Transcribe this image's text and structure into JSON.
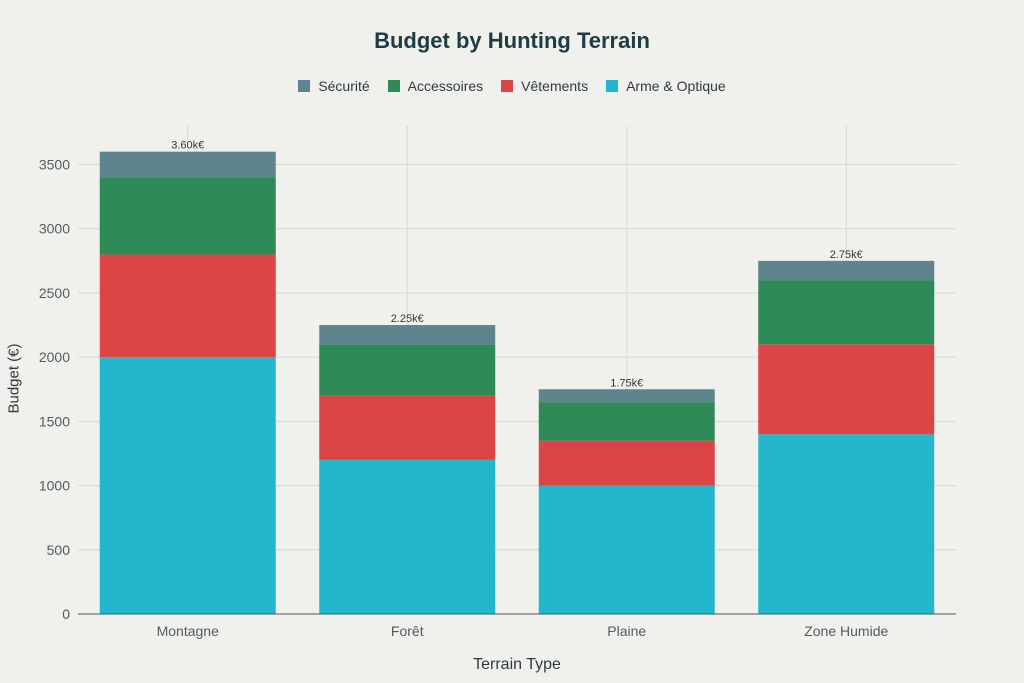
{
  "chart_data": {
    "type": "bar",
    "stacked": true,
    "title": "Budget by Hunting Terrain",
    "xlabel": "Terrain Type",
    "ylabel": "Budget (€)",
    "categories": [
      "Montagne",
      "Forêt",
      "Plaine",
      "Zone Humide"
    ],
    "ylim": [
      0,
      3800
    ],
    "yticks": [
      0,
      500,
      1000,
      1500,
      2000,
      2500,
      3000,
      3500
    ],
    "grid": true,
    "legend_position": "top-center",
    "series": [
      {
        "name": "Arme & Optique",
        "color": "#22b7cc",
        "values": [
          2000,
          1200,
          1000,
          1400
        ]
      },
      {
        "name": "Vêtements",
        "color": "#db4545",
        "values": [
          800,
          500,
          350,
          700
        ]
      },
      {
        "name": "Accessoires",
        "color": "#2e8b57",
        "values": [
          600,
          400,
          300,
          500
        ]
      },
      {
        "name": "Sécurité",
        "color": "#5e858e",
        "values": [
          200,
          150,
          100,
          150
        ]
      }
    ],
    "legend_order": [
      "Sécurité",
      "Accessoires",
      "Vêtements",
      "Arme & Optique"
    ],
    "totals_labels": [
      "3.60k€",
      "2.25k€",
      "1.75k€",
      "2.75k€"
    ]
  }
}
